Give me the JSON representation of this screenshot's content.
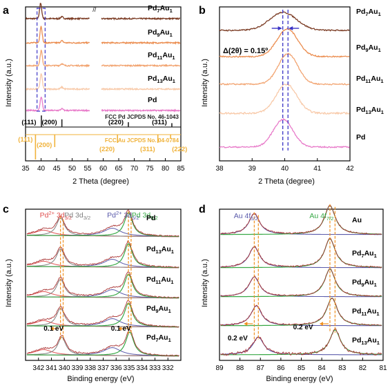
{
  "colors": {
    "pd7": "#7a3a22",
    "pd9": "#eb8c4e",
    "pd11": "#f2a471",
    "pd13": "#f8c9a8",
    "pd": "#e87ac9",
    "au": "#858585",
    "jcpds_pd": "#222222",
    "jcpds_au": "#f0b23a",
    "dash": "#3a33c6",
    "orange": "#f09020",
    "fit_red": "#e05050",
    "fit_grey": "#7f7f7f",
    "fit_blue": "#5a5aaa",
    "fit_green": "#37a845",
    "fit_pink": "#f4a0a0"
  },
  "panels": {
    "a": {
      "letter": "a",
      "xlabel": "2 Theta (degree)",
      "ylabel": "Intensity (a.u.)"
    },
    "b": {
      "letter": "b",
      "xlabel": "2 Theta (degree)",
      "ylabel": "Intensity (a.u.)",
      "delta_label": "Δ(2θ) = 0.15º"
    },
    "c": {
      "letter": "c",
      "xlabel": "Binding energy (eV)",
      "ylabel": "Intensity (a.u.)"
    },
    "d": {
      "letter": "d",
      "xlabel": "Binding energy (eV)",
      "ylabel": "Intensity (a.u.)"
    }
  },
  "chart_data": [
    {
      "type": "line",
      "panel": "a",
      "xlabel": "2 Theta (degree)",
      "ylabel": "Intensity (a.u.)",
      "xlim": [
        35,
        85
      ],
      "xticks": [
        35,
        40,
        45,
        50,
        55,
        60,
        65,
        70,
        75,
        80,
        85
      ],
      "axis_break": [
        55,
        60
      ],
      "series": [
        {
          "label": [
            "Pd",
            "7",
            "Au",
            "1"
          ],
          "color_key": "pd7",
          "peak": 39.85
        },
        {
          "label": [
            "Pd",
            "9",
            "Au",
            "1"
          ],
          "color_key": "pd9",
          "peak": 40.0
        },
        {
          "label": [
            "Pd",
            "11",
            "Au",
            "1"
          ],
          "color_key": "pd11",
          "peak": 40.05
        },
        {
          "label": [
            "Pd",
            "13",
            "Au",
            "1"
          ],
          "color_key": "pd13",
          "peak": 40.05
        },
        {
          "label": [
            "Pd"
          ],
          "color_key": "pd",
          "peak": 40.05
        }
      ],
      "secondary_peak": 46.7,
      "reference_pd": {
        "text": "FCC Pd JCPDS No. 46-1043",
        "peaks": [
          {
            "x": 40.1,
            "label": "(111)"
          },
          {
            "x": 46.7,
            "label": "(200)"
          },
          {
            "x": 68.1,
            "label": "(220)"
          },
          {
            "x": 82.1,
            "label": "(311)"
          }
        ]
      },
      "reference_au": {
        "text": "FCC Au JCPDS No. 04-0784",
        "peaks": [
          {
            "x": 38.2,
            "label": "(111)"
          },
          {
            "x": 44.4,
            "label": "(200)"
          },
          {
            "x": 64.6,
            "label": "(220)"
          },
          {
            "x": 77.6,
            "label": "(311)"
          },
          {
            "x": 81.7,
            "label": "(222)"
          }
        ]
      }
    },
    {
      "type": "line",
      "panel": "b",
      "xlabel": "2 Theta (degree)",
      "ylabel": "Intensity (a.u.)",
      "xlim": [
        38,
        42
      ],
      "xticks": [
        38,
        39,
        40,
        41,
        42
      ],
      "series": [
        {
          "label": [
            "Pd",
            "7",
            "Au",
            "1"
          ],
          "color_key": "pd7",
          "peak": 39.95
        },
        {
          "label": [
            "Pd",
            "9",
            "Au",
            "1"
          ],
          "color_key": "pd9",
          "peak": 40.08
        },
        {
          "label": [
            "Pd",
            "11",
            "Au",
            "1"
          ],
          "color_key": "pd11",
          "peak": 40.1
        },
        {
          "label": [
            "Pd",
            "13",
            "Au",
            "1"
          ],
          "color_key": "pd13",
          "peak": 40.05
        },
        {
          "label": [
            "Pd"
          ],
          "color_key": "pd",
          "peak": 39.95
        }
      ],
      "dashed_lines": [
        39.94,
        40.1
      ],
      "annotation": "Δ(2θ) = 0.15º"
    },
    {
      "type": "line",
      "panel": "c",
      "xlabel": "Binding energy (eV)",
      "ylabel": "Intensity (a.u.)",
      "xlim": [
        343,
        331
      ],
      "xticks": [
        342,
        341,
        340,
        339,
        338,
        337,
        336,
        335,
        334,
        333,
        332
      ],
      "series": [
        {
          "label": [
            "Pd"
          ],
          "peaks": [
            340.3,
            335.05
          ]
        },
        {
          "label": [
            "Pd",
            "13",
            "Au",
            "1"
          ],
          "peaks": [
            340.3,
            335.05
          ]
        },
        {
          "label": [
            "Pd",
            "11",
            "Au",
            "1"
          ],
          "peaks": [
            340.3,
            335.05
          ]
        },
        {
          "label": [
            "Pd",
            "9",
            "Au",
            "1"
          ],
          "peaks": [
            340.3,
            335.05
          ]
        },
        {
          "label": [
            "Pd",
            "7",
            "Au",
            "1"
          ],
          "peaks": [
            340.2,
            334.95
          ]
        }
      ],
      "component_labels": [
        {
          "parts": [
            [
              "Pd",
              "n"
            ],
            [
              "2+",
              "sup"
            ],
            [
              " 3d",
              "n"
            ],
            [
              "3/2",
              "sub"
            ]
          ],
          "color_key": "fit_red",
          "x": 341.9
        },
        {
          "parts": [
            [
              "Pd 3d",
              "n"
            ],
            [
              "3/2",
              "sub"
            ]
          ],
          "color_key": "fit_grey",
          "x": 340.0
        },
        {
          "parts": [
            [
              "Pd",
              "n"
            ],
            [
              "2+",
              "sup"
            ],
            [
              " 3d",
              "n"
            ],
            [
              "5/2",
              "sub"
            ]
          ],
          "color_key": "fit_blue",
          "x": 336.7
        },
        {
          "parts": [
            [
              "Pd 3d",
              "n"
            ],
            [
              "5/2",
              "sub"
            ]
          ],
          "color_key": "fit_green",
          "x": 334.8
        }
      ],
      "shift_annotations": [
        {
          "text": "0.1 eV",
          "x": 341.6
        },
        {
          "text": "0.1 eV",
          "x": 336.4
        }
      ]
    },
    {
      "type": "line",
      "panel": "d",
      "xlabel": "Binding energy (eV)",
      "ylabel": "Intensity (a.u.)",
      "xlim": [
        89,
        81
      ],
      "xticks": [
        89,
        88,
        87,
        86,
        85,
        84,
        83,
        82,
        81
      ],
      "series": [
        {
          "label": [
            "Au"
          ],
          "color_key": "au",
          "peaks": [
            87.3,
            83.6
          ]
        },
        {
          "label": [
            "Pd",
            "7",
            "Au",
            "1"
          ],
          "peaks": [
            87.3,
            83.6
          ]
        },
        {
          "label": [
            "Pd",
            "9",
            "Au",
            "1"
          ],
          "peaks": [
            87.3,
            83.6
          ]
        },
        {
          "label": [
            "Pd",
            "11",
            "Au",
            "1"
          ],
          "peaks": [
            87.2,
            83.5
          ]
        },
        {
          "label": [
            "Pd",
            "13",
            "Au",
            "1"
          ],
          "peaks": [
            87.1,
            83.35
          ]
        }
      ],
      "component_labels": [
        {
          "parts": [
            [
              "Au 4f",
              "n"
            ],
            [
              "5/2",
              "sub"
            ]
          ],
          "color_key": "fit_blue",
          "x": 88.3
        },
        {
          "parts": [
            [
              "Au 4f",
              "n"
            ],
            [
              "7/2",
              "sub"
            ]
          ],
          "color_key": "fit_green",
          "x": 84.6
        }
      ],
      "shift_annotations": [
        {
          "text": "0.2 eV",
          "x": 88.6
        },
        {
          "text": "0.2 eV",
          "x": 85.4
        }
      ]
    }
  ]
}
